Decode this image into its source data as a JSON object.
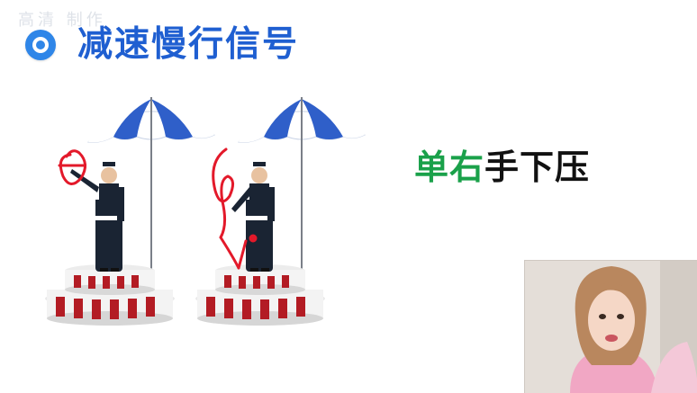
{
  "slide": {
    "title": "减速慢行信号",
    "watermark": "高清 制作",
    "caption_part1": "单右",
    "caption_part2": "手下压"
  },
  "colors": {
    "title_blue": "#1f5fd1",
    "caption_green": "#1aa14a",
    "umbrella_blue": "#2f5fc9",
    "annotation_red": "#e3192a",
    "platform_red": "#b31c24"
  },
  "icons": {
    "bullet": "target-bullet-icon"
  }
}
